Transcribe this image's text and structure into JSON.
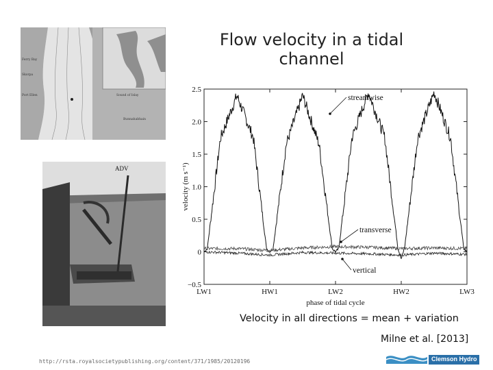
{
  "slide": {
    "title": "Flow velocity in a tidal channel",
    "caption": "Velocity in all directions = mean + variation",
    "citation": "Milne et al. [2013]",
    "url": "http://rsta.royalsocietypublishing.org/content/371/1985/20120196",
    "logo_text": "Clemson Hydro"
  },
  "map_labels": [
    "Ferry Bay",
    "Skorpa",
    "Sound of Islay",
    "Port Ellen",
    "Bunnahabhain"
  ],
  "photo_label": "ADV",
  "chart_data": {
    "type": "line",
    "xlabel": "phase of tidal cycle",
    "ylabel": "velocity (m s⁻¹)",
    "x_ticks": [
      "LW1",
      "HW1",
      "LW2",
      "HW2",
      "LW3"
    ],
    "y_ticks": [
      "−0.5",
      "0",
      "0.5",
      "1.0",
      "1.5",
      "2.0",
      "2.5"
    ],
    "ylim": [
      -0.5,
      2.5
    ],
    "x_range": [
      0,
      4
    ],
    "series": [
      {
        "name": "streamwise",
        "x": [
          0,
          0.05,
          0.25,
          0.5,
          0.75,
          0.95,
          1.0,
          1.05,
          1.25,
          1.5,
          1.75,
          1.95,
          2.0,
          2.05,
          2.25,
          2.5,
          2.75,
          2.95,
          3.0,
          3.05,
          3.25,
          3.5,
          3.75,
          3.95,
          4.0
        ],
        "values": [
          0,
          0.05,
          1.75,
          2.4,
          1.75,
          0.05,
          0,
          0.05,
          1.65,
          2.4,
          1.65,
          0.05,
          0,
          0.05,
          1.75,
          2.45,
          1.75,
          0.05,
          -0.1,
          0.05,
          1.75,
          2.45,
          1.75,
          0.05,
          0
        ]
      },
      {
        "name": "transverse",
        "x": [
          0,
          0.5,
          1.0,
          1.5,
          2.0,
          2.5,
          3.0,
          3.5,
          4.0
        ],
        "values": [
          0.05,
          0.05,
          0.02,
          0.06,
          0.08,
          0.07,
          0.05,
          0.06,
          0.05
        ]
      },
      {
        "name": "vertical",
        "x": [
          0,
          0.5,
          1.0,
          1.5,
          2.0,
          2.5,
          3.0,
          3.5,
          4.0
        ],
        "values": [
          0.0,
          -0.02,
          -0.05,
          -0.01,
          -0.02,
          -0.03,
          -0.05,
          -0.02,
          -0.04
        ]
      }
    ]
  }
}
